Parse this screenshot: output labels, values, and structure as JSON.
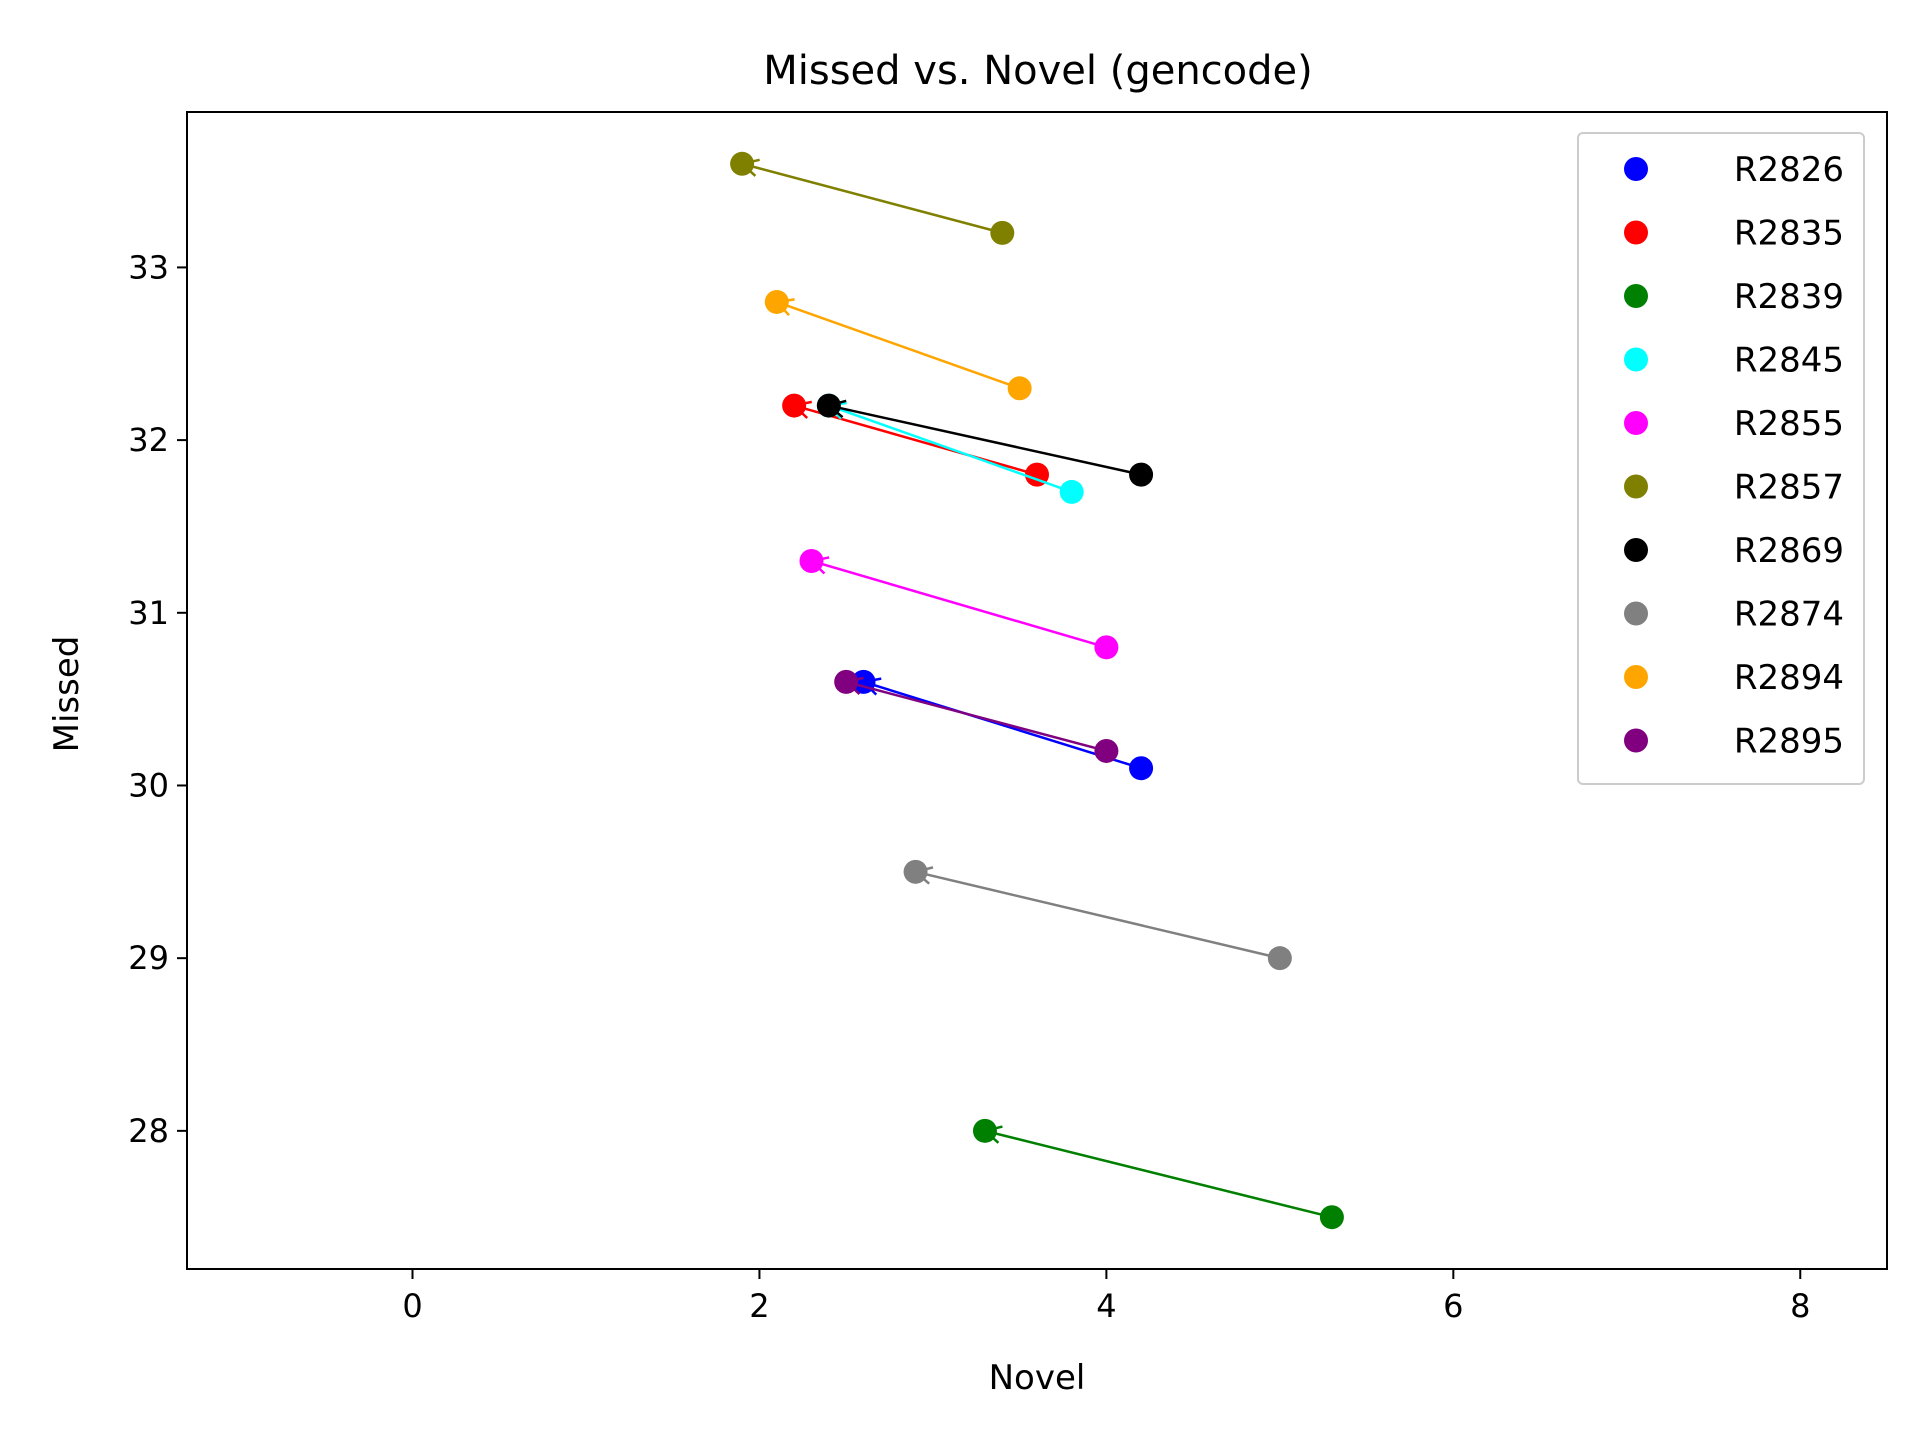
{
  "chart_data": {
    "type": "scatter",
    "title": "Missed vs. Novel (gencode)",
    "xlabel": "Novel",
    "ylabel": "Missed",
    "xlim": [
      -1.3,
      8.5
    ],
    "ylim": [
      27.2,
      33.9
    ],
    "xticks": [
      0,
      2,
      4,
      6,
      8
    ],
    "yticks": [
      28,
      29,
      30,
      31,
      32,
      33
    ],
    "legend_position": "top-right",
    "grid": false,
    "series": [
      {
        "name": "R2826",
        "color": "#0000ff",
        "from": [
          4.2,
          30.1
        ],
        "to": [
          2.6,
          30.6
        ]
      },
      {
        "name": "R2835",
        "color": "#ff0000",
        "from": [
          3.6,
          31.8
        ],
        "to": [
          2.2,
          32.2
        ]
      },
      {
        "name": "R2839",
        "color": "#008000",
        "from": [
          5.3,
          27.5
        ],
        "to": [
          3.3,
          28.0
        ]
      },
      {
        "name": "R2845",
        "color": "#00ffff",
        "from": [
          3.8,
          31.7
        ],
        "to": [
          2.4,
          32.2
        ]
      },
      {
        "name": "R2855",
        "color": "#ff00ff",
        "from": [
          4.0,
          30.8
        ],
        "to": [
          2.3,
          31.3
        ]
      },
      {
        "name": "R2857",
        "color": "#808000",
        "from": [
          3.4,
          33.2
        ],
        "to": [
          1.9,
          33.6
        ]
      },
      {
        "name": "R2869",
        "color": "#000000",
        "from": [
          4.2,
          31.8
        ],
        "to": [
          2.4,
          32.2
        ]
      },
      {
        "name": "R2874",
        "color": "#808080",
        "from": [
          5.0,
          29.0
        ],
        "to": [
          2.9,
          29.5
        ]
      },
      {
        "name": "R2894",
        "color": "#ffa500",
        "from": [
          3.5,
          32.3
        ],
        "to": [
          2.1,
          32.8
        ]
      },
      {
        "name": "R2895",
        "color": "#800080",
        "from": [
          4.0,
          30.2
        ],
        "to": [
          2.5,
          30.6
        ]
      }
    ]
  }
}
